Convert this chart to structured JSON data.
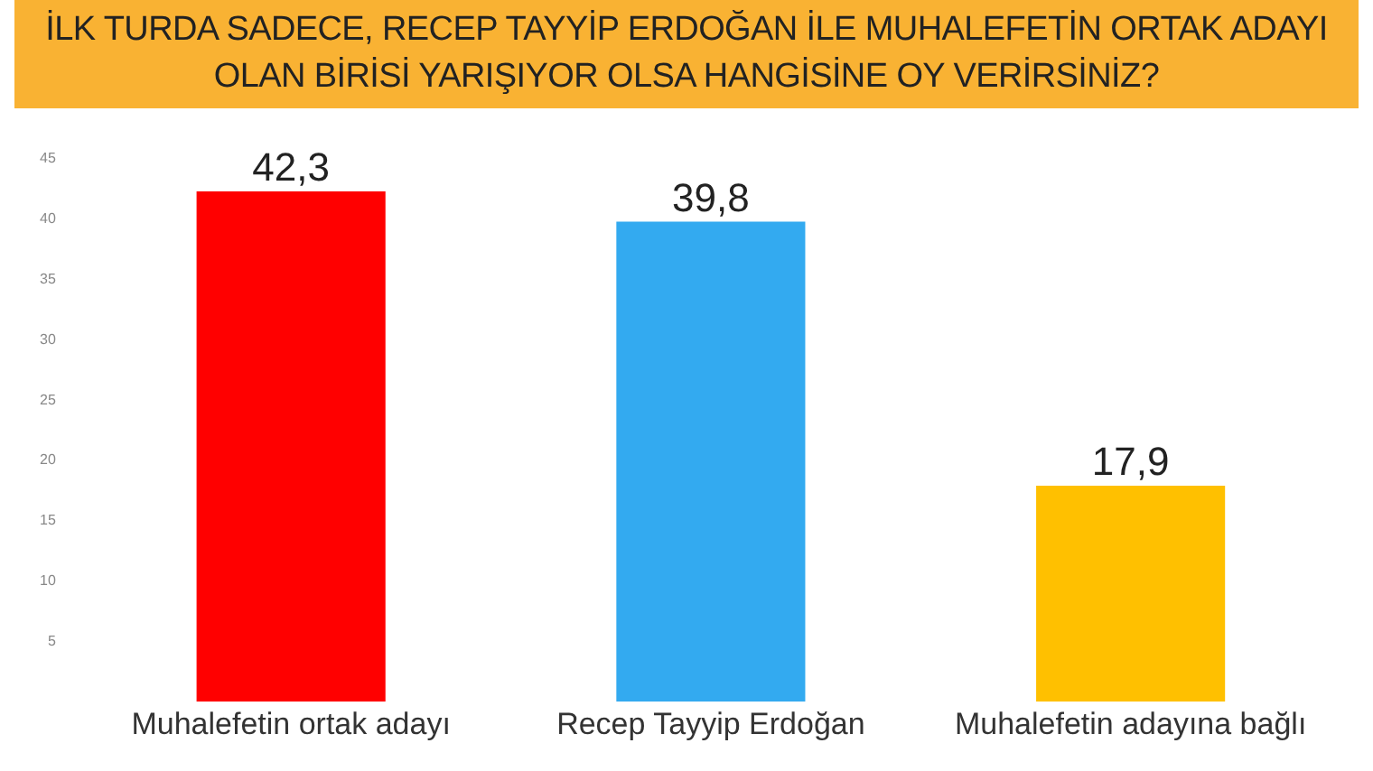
{
  "chart_data": {
    "type": "bar",
    "title": "İLK TURDA SADECE, RECEP TAYYİP ERDOĞAN İLE MUHALEFETİN ORTAK ADAYI OLAN BİRİSİ YARIŞIYOR OLSA HANGİSİNE OY VERİRSİNİZ?",
    "categories": [
      "Muhalefetin ortak adayı",
      "Recep Tayyip Erdoğan",
      "Muhalefetin adayına bağlı"
    ],
    "values": [
      42.3,
      39.8,
      17.9
    ],
    "colors": [
      "#ff0000",
      "#33aaf0",
      "#ffc000"
    ],
    "ylim": [
      0,
      45
    ],
    "yticks": [
      5,
      10,
      15,
      20,
      25,
      30,
      35,
      40,
      45
    ],
    "value_labels": [
      "42,3",
      "39,8",
      "17,9"
    ],
    "grid": false,
    "legend": false
  }
}
